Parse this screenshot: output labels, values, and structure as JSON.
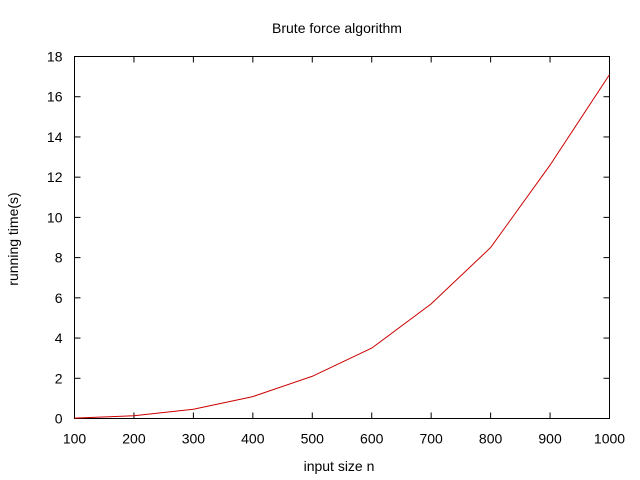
{
  "chart_data": {
    "type": "line",
    "title": "Brute force algorithm",
    "xlabel": "input size n",
    "ylabel": "running time(s)",
    "xlim": [
      100,
      1000
    ],
    "ylim": [
      0,
      18
    ],
    "x_ticks": [
      100,
      200,
      300,
      400,
      500,
      600,
      700,
      800,
      900,
      1000
    ],
    "y_ticks": [
      0,
      2,
      4,
      6,
      8,
      10,
      12,
      14,
      16,
      18
    ],
    "grid": false,
    "series": [
      {
        "color": "#cc0000",
        "x": [
          100,
          200,
          300,
          400,
          500,
          600,
          700,
          800,
          900,
          1000
        ],
        "y": [
          0.017,
          0.137,
          0.46,
          1.09,
          2.1,
          3.5,
          5.7,
          8.5,
          12.6,
          17.1
        ]
      }
    ]
  }
}
